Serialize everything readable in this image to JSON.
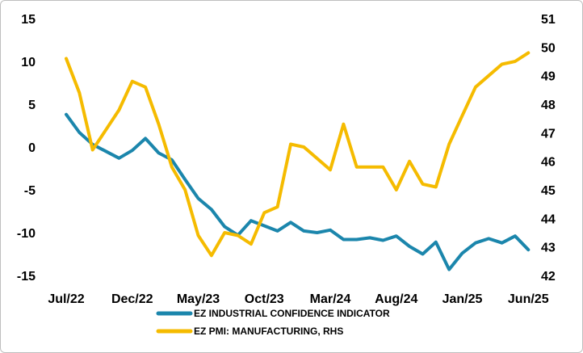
{
  "chart_data": {
    "type": "line",
    "x_tick_labels": [
      "Jul/22",
      "Dec/22",
      "May/23",
      "Oct/23",
      "Mar/24",
      "Aug/24",
      "Jan/25",
      "Jun/25"
    ],
    "x_tick_index": [
      0,
      5,
      10,
      15,
      20,
      25,
      30,
      35
    ],
    "y_left": {
      "lim": [
        -15,
        15
      ],
      "ticks": [
        "15",
        "10",
        "5",
        "0",
        "-5",
        "-10",
        "-15"
      ]
    },
    "y_right": {
      "lim": [
        42,
        51
      ],
      "ticks": [
        "51",
        "50",
        "49",
        "48",
        "47",
        "46",
        "45",
        "44",
        "43",
        "42"
      ]
    },
    "grid": false,
    "legend_position": "bottom",
    "series": [
      {
        "name": "EZ INDUSTRIAL CONFIDENCE INDICATOR",
        "axis": "left",
        "color": "#1b86ac",
        "values": [
          3.8,
          1.7,
          0.3,
          -0.5,
          -1.3,
          -0.4,
          1.0,
          -0.7,
          -1.5,
          -3.8,
          -6.0,
          -7.3,
          -9.3,
          -10.3,
          -8.6,
          -9.2,
          -9.8,
          -8.8,
          -9.8,
          -10.0,
          -9.7,
          -10.8,
          -10.8,
          -10.6,
          -10.9,
          -10.4,
          -11.6,
          -12.5,
          -11.1,
          -14.3,
          -12.4,
          -11.2,
          -10.7,
          -11.2,
          -10.4,
          -12.0
        ]
      },
      {
        "name": "EZ PMI: MANUFACTURING, RHS",
        "axis": "right",
        "color": "#f5bb00",
        "values": [
          49.6,
          48.4,
          46.4,
          47.1,
          47.8,
          48.8,
          48.6,
          47.3,
          45.8,
          45.0,
          43.4,
          42.7,
          43.5,
          43.4,
          43.1,
          44.2,
          44.4,
          46.6,
          46.5,
          46.1,
          45.7,
          47.3,
          45.8,
          45.8,
          45.8,
          45.0,
          46.0,
          45.2,
          45.1,
          46.6,
          47.6,
          48.6,
          49.0,
          49.4,
          49.5,
          49.8
        ]
      }
    ]
  }
}
